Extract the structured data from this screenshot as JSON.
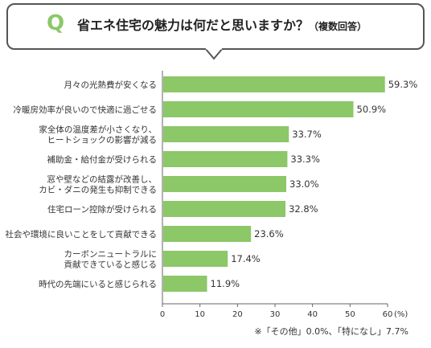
{
  "header": {
    "q_letter": "Q",
    "question": "省エネ住宅の魅力は何だと思いますか？",
    "note": "（複数回答）"
  },
  "colors": {
    "bar": "#8cc768",
    "accent": "#8cc768"
  },
  "chart_data": {
    "type": "bar",
    "orientation": "horizontal",
    "categories": [
      [
        "月々の光熱費が安くなる"
      ],
      [
        "冷暖房効率が良いので快適に過ごせる"
      ],
      [
        "家全体の温度差が小さくなり、",
        "ヒートショックの影響が減る"
      ],
      [
        "補助金・給付金が受けられる"
      ],
      [
        "窓や壁などの結露が改善し、",
        "カビ・ダニの発生も抑制できる"
      ],
      [
        "住宅ローン控除が受けられる"
      ],
      [
        "社会や環境に良いことをして貢献できる"
      ],
      [
        "カーボンニュートラルに",
        "貢献できていると感じる"
      ],
      [
        "時代の先端にいると感じられる"
      ]
    ],
    "values": [
      59.3,
      50.9,
      33.7,
      33.3,
      33.0,
      32.8,
      23.6,
      17.4,
      11.9
    ],
    "value_labels": [
      "59.3%",
      "50.9%",
      "33.7%",
      "33.3%",
      "33.0%",
      "32.8%",
      "23.6%",
      "17.4%",
      "11.9%"
    ],
    "xlim": [
      0,
      60
    ],
    "xticks": [
      "0",
      "10",
      "20",
      "30",
      "40",
      "50",
      "60"
    ],
    "xunit": "(%)"
  },
  "footnote": "※「その他」0.0%、「特になし」7.7%"
}
